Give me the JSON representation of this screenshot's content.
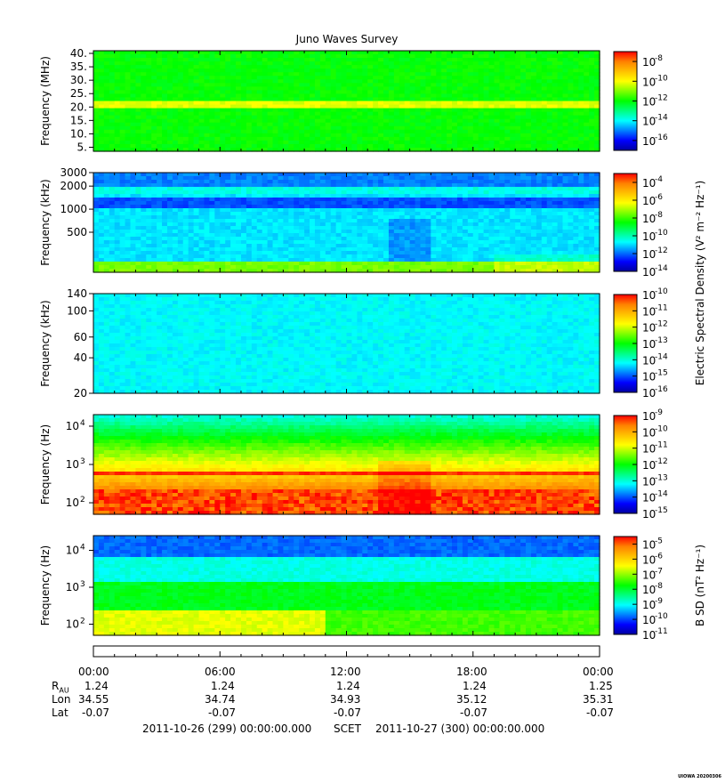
{
  "title": "Juno Waves Survey",
  "colors": {
    "colormap": [
      "#0000a0",
      "#0000ff",
      "#0080ff",
      "#00ffff",
      "#00ff80",
      "#00ff00",
      "#80ff00",
      "#ffff00",
      "#ffc000",
      "#ff8000",
      "#ff0000"
    ]
  },
  "colorbar_titles": {
    "electric": "Electric Spectral Density (V² m⁻² Hz⁻¹)",
    "magnetic": "B SD (nT² Hz⁻¹)"
  },
  "time_axis": {
    "ticks": [
      "00:00",
      "06:00",
      "12:00",
      "18:00",
      "00:00"
    ],
    "rows": [
      {
        "label": "R",
        "subscript": "AU",
        "values": [
          "1.24",
          "1.24",
          "1.24",
          "1.24",
          "1.25"
        ]
      },
      {
        "label": "Lon",
        "subscript": "",
        "values": [
          "34.55",
          "34.74",
          "34.93",
          "35.12",
          "35.31"
        ]
      },
      {
        "label": "Lat",
        "subscript": "",
        "values": [
          "-0.07",
          "-0.07",
          "-0.07",
          "-0.07",
          "-0.07"
        ]
      }
    ],
    "start": "2011-10-26 (299) 00:00:00.000",
    "scet_label": "SCET",
    "end": "2011-10-27 (300) 00:00:00.000"
  },
  "credit": "UIOWA 20200306",
  "chart_data": [
    {
      "type": "heatmap",
      "ylabel": "Frequency (MHz)",
      "yscale": "linear",
      "ylim": [
        3.5,
        41
      ],
      "yticks": [
        {
          "v": 40,
          "label": "40."
        },
        {
          "v": 35,
          "label": "35."
        },
        {
          "v": 30,
          "label": "30."
        },
        {
          "v": 25,
          "label": "25."
        },
        {
          "v": 20,
          "label": "20."
        },
        {
          "v": 15,
          "label": "15."
        },
        {
          "v": 10,
          "label": "10."
        },
        {
          "v": 5,
          "label": "5."
        }
      ],
      "xlim": [
        0,
        24
      ],
      "colorbar": {
        "exp_min": -17,
        "exp_max": -7,
        "labels": [
          -8,
          -10,
          -12,
          -14,
          -16
        ]
      },
      "level": 0.5,
      "bands": [
        {
          "y": 21,
          "width": 0.8,
          "delta": 0.18
        },
        {
          "y": 9,
          "width": 0.4,
          "delta": -0.05
        }
      ]
    },
    {
      "type": "heatmap",
      "ylabel": "Frequency (kHz)",
      "yscale": "log",
      "ylim": [
        150,
        3000
      ],
      "yticks": [
        {
          "v": 3000,
          "label": "3000"
        },
        {
          "v": 2000,
          "label": "2000"
        },
        {
          "v": 1000,
          "label": "1000"
        },
        {
          "v": 500,
          "label": "500"
        }
      ],
      "xlim": [
        0,
        24
      ],
      "colorbar": {
        "exp_min": -14,
        "exp_max": -3,
        "labels": [
          -4,
          -6,
          -8,
          -10,
          -12,
          -14
        ]
      },
      "level": 0.28,
      "bands": [
        {
          "y": 1700,
          "width": 0.05,
          "delta": 0.12
        },
        {
          "y": 1200,
          "width": 0.06,
          "delta": -0.12
        },
        {
          "y": 170,
          "width": 0.08,
          "delta": 0.14
        }
      ]
    },
    {
      "type": "heatmap",
      "ylabel": "Frequency (kHz)",
      "yscale": "log",
      "ylim": [
        20,
        140
      ],
      "yticks": [
        {
          "v": 140,
          "label": "140"
        },
        {
          "v": 100,
          "label": "100"
        },
        {
          "v": 60,
          "label": "60"
        },
        {
          "v": 40,
          "label": "40"
        },
        {
          "v": 20,
          "label": "20"
        }
      ],
      "xlim": [
        0,
        24
      ],
      "colorbar": {
        "exp_min": -16,
        "exp_max": -10,
        "labels": [
          -10,
          -11,
          -12,
          -13,
          -14,
          -15,
          -16
        ]
      },
      "level": 0.3,
      "bands": []
    },
    {
      "type": "heatmap",
      "ylabel": "Frequency (Hz)",
      "yscale": "log",
      "ylim": [
        50,
        20000
      ],
      "yticks": [
        {
          "v": 10000,
          "label": "10",
          "exp": "4"
        },
        {
          "v": 1000,
          "label": "10",
          "exp": "3"
        },
        {
          "v": 100,
          "label": "10",
          "exp": "2"
        }
      ],
      "xlim": [
        0,
        24
      ],
      "colorbar": {
        "exp_min": -15,
        "exp_max": -9,
        "labels": [
          -9,
          -10,
          -11,
          -12,
          -13,
          -14,
          -15
        ]
      },
      "level": 0.35,
      "gradient": "low-high",
      "bands": [
        {
          "y": 600,
          "width": 0.04,
          "delta": 0.2
        }
      ]
    },
    {
      "type": "heatmap",
      "ylabel": "Frequency (Hz)",
      "yscale": "log",
      "ylim": [
        50,
        25000
      ],
      "yticks": [
        {
          "v": 10000,
          "label": "10",
          "exp": "4"
        },
        {
          "v": 1000,
          "label": "10",
          "exp": "3"
        },
        {
          "v": 100,
          "label": "10",
          "exp": "2"
        }
      ],
      "xlim": [
        0,
        24
      ],
      "colorbar": {
        "exp_min": -11,
        "exp_max": -4.5,
        "labels": [
          -5,
          -6,
          -7,
          -8,
          -9,
          -10,
          -11
        ]
      },
      "level": 0.3,
      "gradient": "magnetic",
      "bands": []
    }
  ]
}
